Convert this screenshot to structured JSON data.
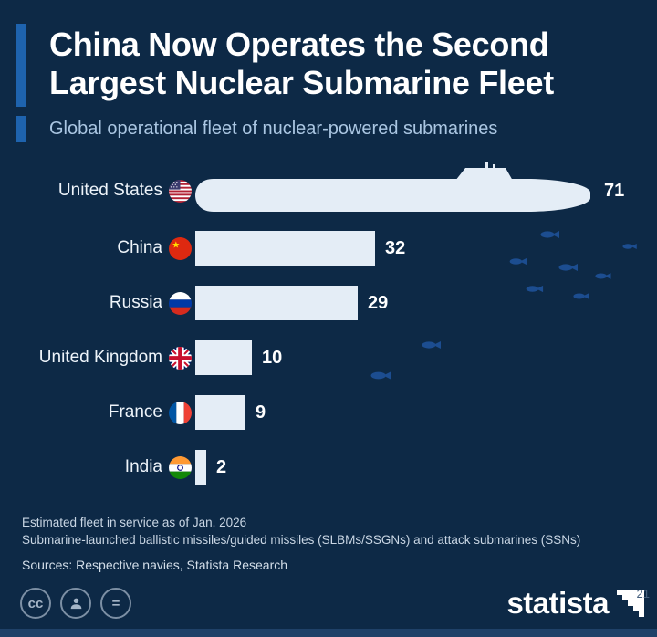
{
  "header": {
    "title_line1": "China Now Operates the Second",
    "title_line2": "Largest Nuclear Submarine Fleet",
    "subtitle": "Global operational fleet of nuclear-powered submarines"
  },
  "chart_data": {
    "type": "bar",
    "orientation": "horizontal",
    "title": "China Now Operates the Second Largest Nuclear Submarine Fleet",
    "subtitle": "Global operational fleet of nuclear-powered submarines",
    "categories": [
      "United States",
      "China",
      "Russia",
      "United Kingdom",
      "France",
      "India"
    ],
    "values": [
      71,
      32,
      29,
      10,
      9,
      2
    ],
    "xlim": [
      0,
      71
    ],
    "xlabel": "",
    "ylabel": "",
    "grid": false,
    "legend": false,
    "bar_color": "#e4edf6",
    "rows": [
      {
        "country": "United States",
        "value_label": "71",
        "flag": "united-states"
      },
      {
        "country": "China",
        "value_label": "32",
        "flag": "china"
      },
      {
        "country": "Russia",
        "value_label": "29",
        "flag": "russia"
      },
      {
        "country": "United Kingdom",
        "value_label": "10",
        "flag": "united-kingdom"
      },
      {
        "country": "France",
        "value_label": "9",
        "flag": "france"
      },
      {
        "country": "India",
        "value_label": "2",
        "flag": "india"
      }
    ]
  },
  "footer": {
    "note1": "Estimated fleet in service as of Jan. 2026",
    "note2": "Submarine-launched ballistic missiles/guided missiles (SLBMs/SSGNs) and attack submarines (SSNs)",
    "sources": "Sources: Respective navies, Statista Research"
  },
  "branding": {
    "logo_text": "statista",
    "cc_text": "cc",
    "equals_text": "=",
    "watermark": "21"
  },
  "colors": {
    "background": "#0d2946",
    "accent": "#1e63ae",
    "bar": "#e4edf6",
    "fish": "#1c4d90",
    "title": "#ffffff",
    "subtitle": "#aac6e2"
  }
}
